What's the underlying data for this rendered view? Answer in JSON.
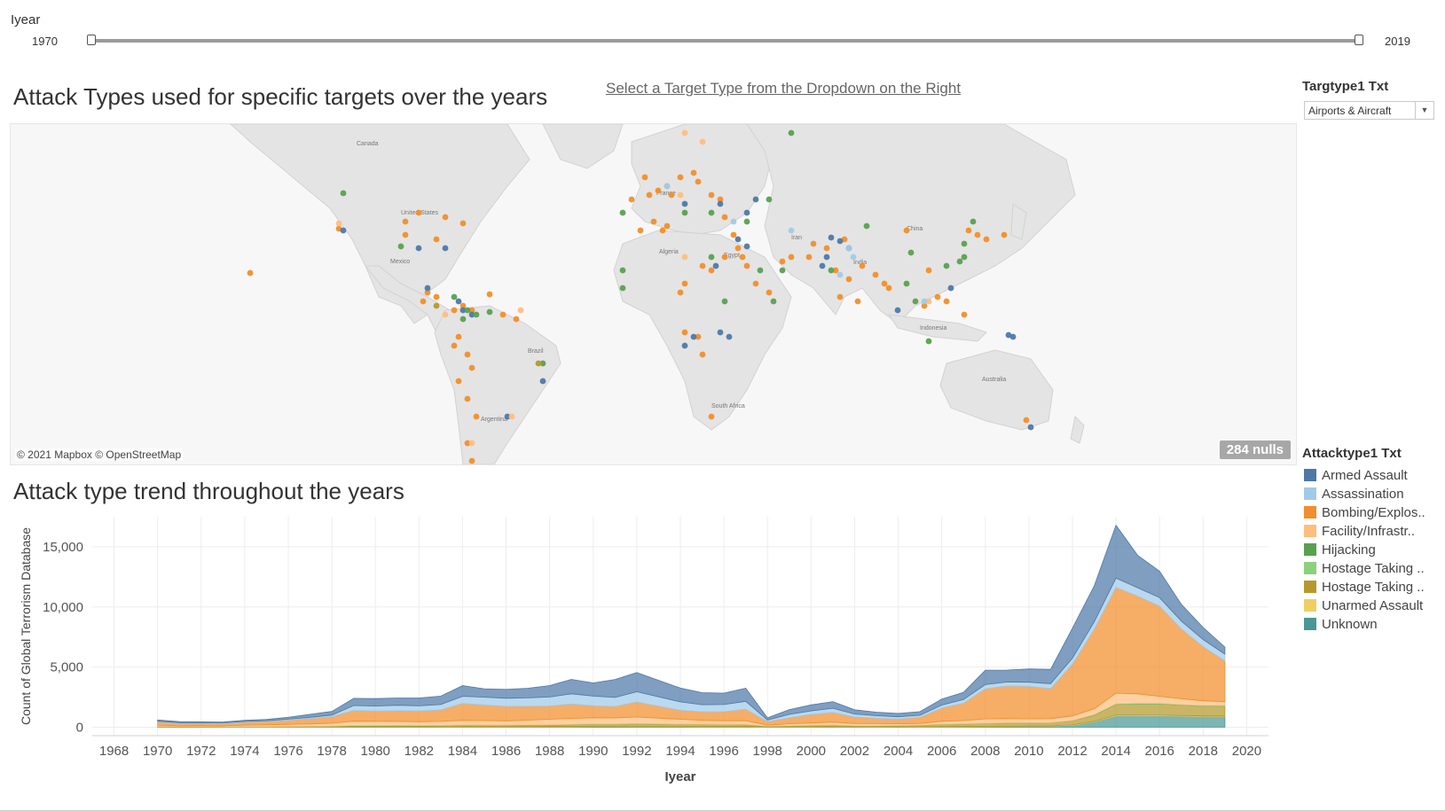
{
  "filter": {
    "label": "Iyear",
    "min_label": "1970",
    "max_label": "2019"
  },
  "map": {
    "title": "Attack Types used for specific targets over the years",
    "instruction_link": "Select a Target Type from the Dropdown on the Right",
    "attribution": "© 2021 Mapbox © OpenStreetMap",
    "nulls_badge": "284 nulls",
    "labels": [
      "Canada",
      "United States",
      "Mexico",
      "Brazil",
      "Argentina",
      "France",
      "Algeria",
      "Egypt",
      "Iran",
      "India",
      "China",
      "Indonesia",
      "Australia",
      "South Africa"
    ]
  },
  "target_filter": {
    "label": "Targtype1 Txt",
    "selected": "Airports & Aircraft"
  },
  "colors": {
    "Armed Assault": "#4e79a7",
    "Assassination": "#a0cbe8",
    "Bombing/Explosion": "#f28e2b",
    "Facility/Infrastructure": "#ffbe7d",
    "Hijacking": "#59a14f",
    "Hostage Taking (Barricade)": "#8cd17d",
    "Hostage Taking (Kidnapping)": "#b6992d",
    "Unarmed Assault": "#f1ce63",
    "Unknown": "#499894"
  },
  "legend": {
    "title": "Attacktype1 Txt",
    "items": [
      {
        "label": "Armed Assault",
        "color": "#4e79a7"
      },
      {
        "label": "Assassination",
        "color": "#a0cbe8"
      },
      {
        "label": "Bombing/Explos..",
        "color": "#f28e2b"
      },
      {
        "label": "Facility/Infrastr..",
        "color": "#ffbe7d"
      },
      {
        "label": "Hijacking",
        "color": "#59a14f"
      },
      {
        "label": "Hostage Taking ..",
        "color": "#8cd17d"
      },
      {
        "label": "Hostage Taking ..",
        "color": "#b6992d"
      },
      {
        "label": "Unarmed Assault",
        "color": "#f1ce63"
      },
      {
        "label": "Unknown",
        "color": "#499894"
      }
    ]
  },
  "trend": {
    "title": "Attack type trend throughout the years"
  },
  "chart_data": {
    "type": "area",
    "stacked": true,
    "xlabel": "Iyear",
    "ylabel": "Count of Global Terrorism Database",
    "xlim": [
      1967,
      2021
    ],
    "ylim": [
      -700,
      17500
    ],
    "x_ticks": [
      1968,
      1970,
      1972,
      1974,
      1976,
      1978,
      1980,
      1982,
      1984,
      1986,
      1988,
      1990,
      1992,
      1994,
      1996,
      1998,
      2000,
      2002,
      2004,
      2006,
      2008,
      2010,
      2012,
      2014,
      2016,
      2018,
      2020
    ],
    "y_ticks": [
      0,
      5000,
      10000,
      15000
    ],
    "y_tick_labels": [
      "0",
      "5,000",
      "10,000",
      "15,000"
    ],
    "grid": true,
    "x": [
      1970,
      1971,
      1972,
      1973,
      1974,
      1975,
      1976,
      1977,
      1978,
      1979,
      1980,
      1981,
      1982,
      1983,
      1984,
      1985,
      1986,
      1987,
      1988,
      1989,
      1990,
      1991,
      1992,
      1994,
      1995,
      1996,
      1997,
      1998,
      1999,
      2000,
      2001,
      2002,
      2003,
      2004,
      2005,
      2006,
      2007,
      2008,
      2009,
      2010,
      2011,
      2012,
      2013,
      2014,
      2015,
      2016,
      2017,
      2018,
      2019
    ],
    "series": [
      {
        "name": "Unknown",
        "color": "#499894",
        "values": [
          10,
          5,
          5,
          5,
          5,
          10,
          15,
          15,
          20,
          25,
          25,
          30,
          30,
          30,
          40,
          40,
          40,
          40,
          50,
          55,
          70,
          70,
          60,
          60,
          55,
          50,
          60,
          20,
          30,
          40,
          45,
          30,
          25,
          20,
          25,
          40,
          45,
          60,
          70,
          80,
          90,
          160,
          450,
          950,
          950,
          950,
          920,
          900,
          900
        ]
      },
      {
        "name": "Unarmed Assault",
        "color": "#f1ce63",
        "values": [
          2,
          1,
          1,
          1,
          1,
          2,
          2,
          5,
          5,
          8,
          8,
          8,
          8,
          8,
          10,
          10,
          10,
          10,
          10,
          12,
          15,
          15,
          20,
          20,
          20,
          18,
          18,
          10,
          10,
          10,
          10,
          10,
          10,
          10,
          10,
          15,
          20,
          20,
          20,
          20,
          20,
          30,
          40,
          60,
          60,
          55,
          50,
          45,
          40
        ]
      },
      {
        "name": "Hostage Taking (Kidnapping)",
        "color": "#b6992d",
        "values": [
          5,
          5,
          5,
          5,
          10,
          10,
          20,
          30,
          40,
          80,
          80,
          80,
          80,
          90,
          100,
          100,
          110,
          120,
          130,
          140,
          150,
          170,
          200,
          160,
          150,
          150,
          130,
          40,
          70,
          100,
          110,
          70,
          80,
          100,
          130,
          180,
          200,
          230,
          260,
          250,
          260,
          330,
          500,
          850,
          900,
          900,
          850,
          800,
          800
        ]
      },
      {
        "name": "Hostage Taking (Barricade)",
        "color": "#8cd17d",
        "values": [
          5,
          5,
          5,
          5,
          10,
          10,
          10,
          10,
          10,
          15,
          15,
          15,
          10,
          10,
          10,
          10,
          10,
          10,
          10,
          10,
          10,
          10,
          10,
          10,
          10,
          10,
          10,
          5,
          5,
          5,
          5,
          5,
          5,
          5,
          5,
          10,
          10,
          10,
          10,
          10,
          10,
          20,
          30,
          40,
          40,
          40,
          30,
          30,
          30
        ]
      },
      {
        "name": "Hijacking",
        "color": "#59a14f",
        "values": [
          30,
          25,
          25,
          20,
          20,
          15,
          15,
          15,
          15,
          15,
          15,
          15,
          10,
          10,
          15,
          10,
          10,
          10,
          10,
          10,
          10,
          10,
          10,
          10,
          10,
          10,
          10,
          5,
          5,
          10,
          10,
          5,
          5,
          5,
          5,
          5,
          5,
          5,
          5,
          5,
          5,
          10,
          20,
          30,
          30,
          30,
          20,
          20,
          20
        ]
      },
      {
        "name": "Facility/Infrastructure",
        "color": "#ffbe7d",
        "values": [
          100,
          80,
          90,
          90,
          120,
          150,
          180,
          200,
          240,
          360,
          350,
          330,
          320,
          340,
          400,
          380,
          350,
          400,
          450,
          500,
          530,
          500,
          550,
          400,
          330,
          300,
          320,
          90,
          170,
          190,
          250,
          180,
          180,
          150,
          140,
          240,
          270,
          370,
          360,
          330,
          330,
          390,
          500,
          900,
          800,
          600,
          500,
          400,
          330
        ]
      },
      {
        "name": "Bombing/Explosion",
        "color": "#f28e2b",
        "values": [
          300,
          220,
          210,
          200,
          250,
          280,
          350,
          450,
          550,
          900,
          850,
          900,
          900,
          950,
          1400,
          1300,
          1200,
          1150,
          1100,
          1200,
          1000,
          950,
          1250,
          750,
          700,
          750,
          950,
          300,
          500,
          700,
          800,
          550,
          450,
          400,
          500,
          1100,
          1450,
          2500,
          2700,
          2700,
          2500,
          4300,
          6600,
          8800,
          8100,
          7500,
          5800,
          4500,
          3400
        ]
      },
      {
        "name": "Assassination",
        "color": "#a0cbe8",
        "values": [
          50,
          40,
          40,
          40,
          60,
          60,
          80,
          100,
          130,
          400,
          420,
          450,
          420,
          450,
          600,
          650,
          680,
          700,
          750,
          850,
          800,
          750,
          850,
          700,
          600,
          600,
          650,
          130,
          280,
          300,
          350,
          250,
          200,
          180,
          180,
          250,
          300,
          350,
          330,
          350,
          400,
          500,
          620,
          760,
          700,
          700,
          650,
          600,
          550
        ]
      },
      {
        "name": "Armed Assault",
        "color": "#4e79a7",
        "values": [
          100,
          80,
          70,
          70,
          100,
          120,
          150,
          250,
          300,
          600,
          620,
          600,
          650,
          700,
          880,
          700,
          740,
          800,
          950,
          1200,
          1100,
          1500,
          1600,
          1150,
          1000,
          950,
          1100,
          180,
          400,
          500,
          550,
          350,
          300,
          280,
          300,
          500,
          600,
          1200,
          1000,
          1100,
          1200,
          2500,
          3000,
          4400,
          2700,
          2200,
          1400,
          1000,
          600
        ]
      }
    ]
  }
}
